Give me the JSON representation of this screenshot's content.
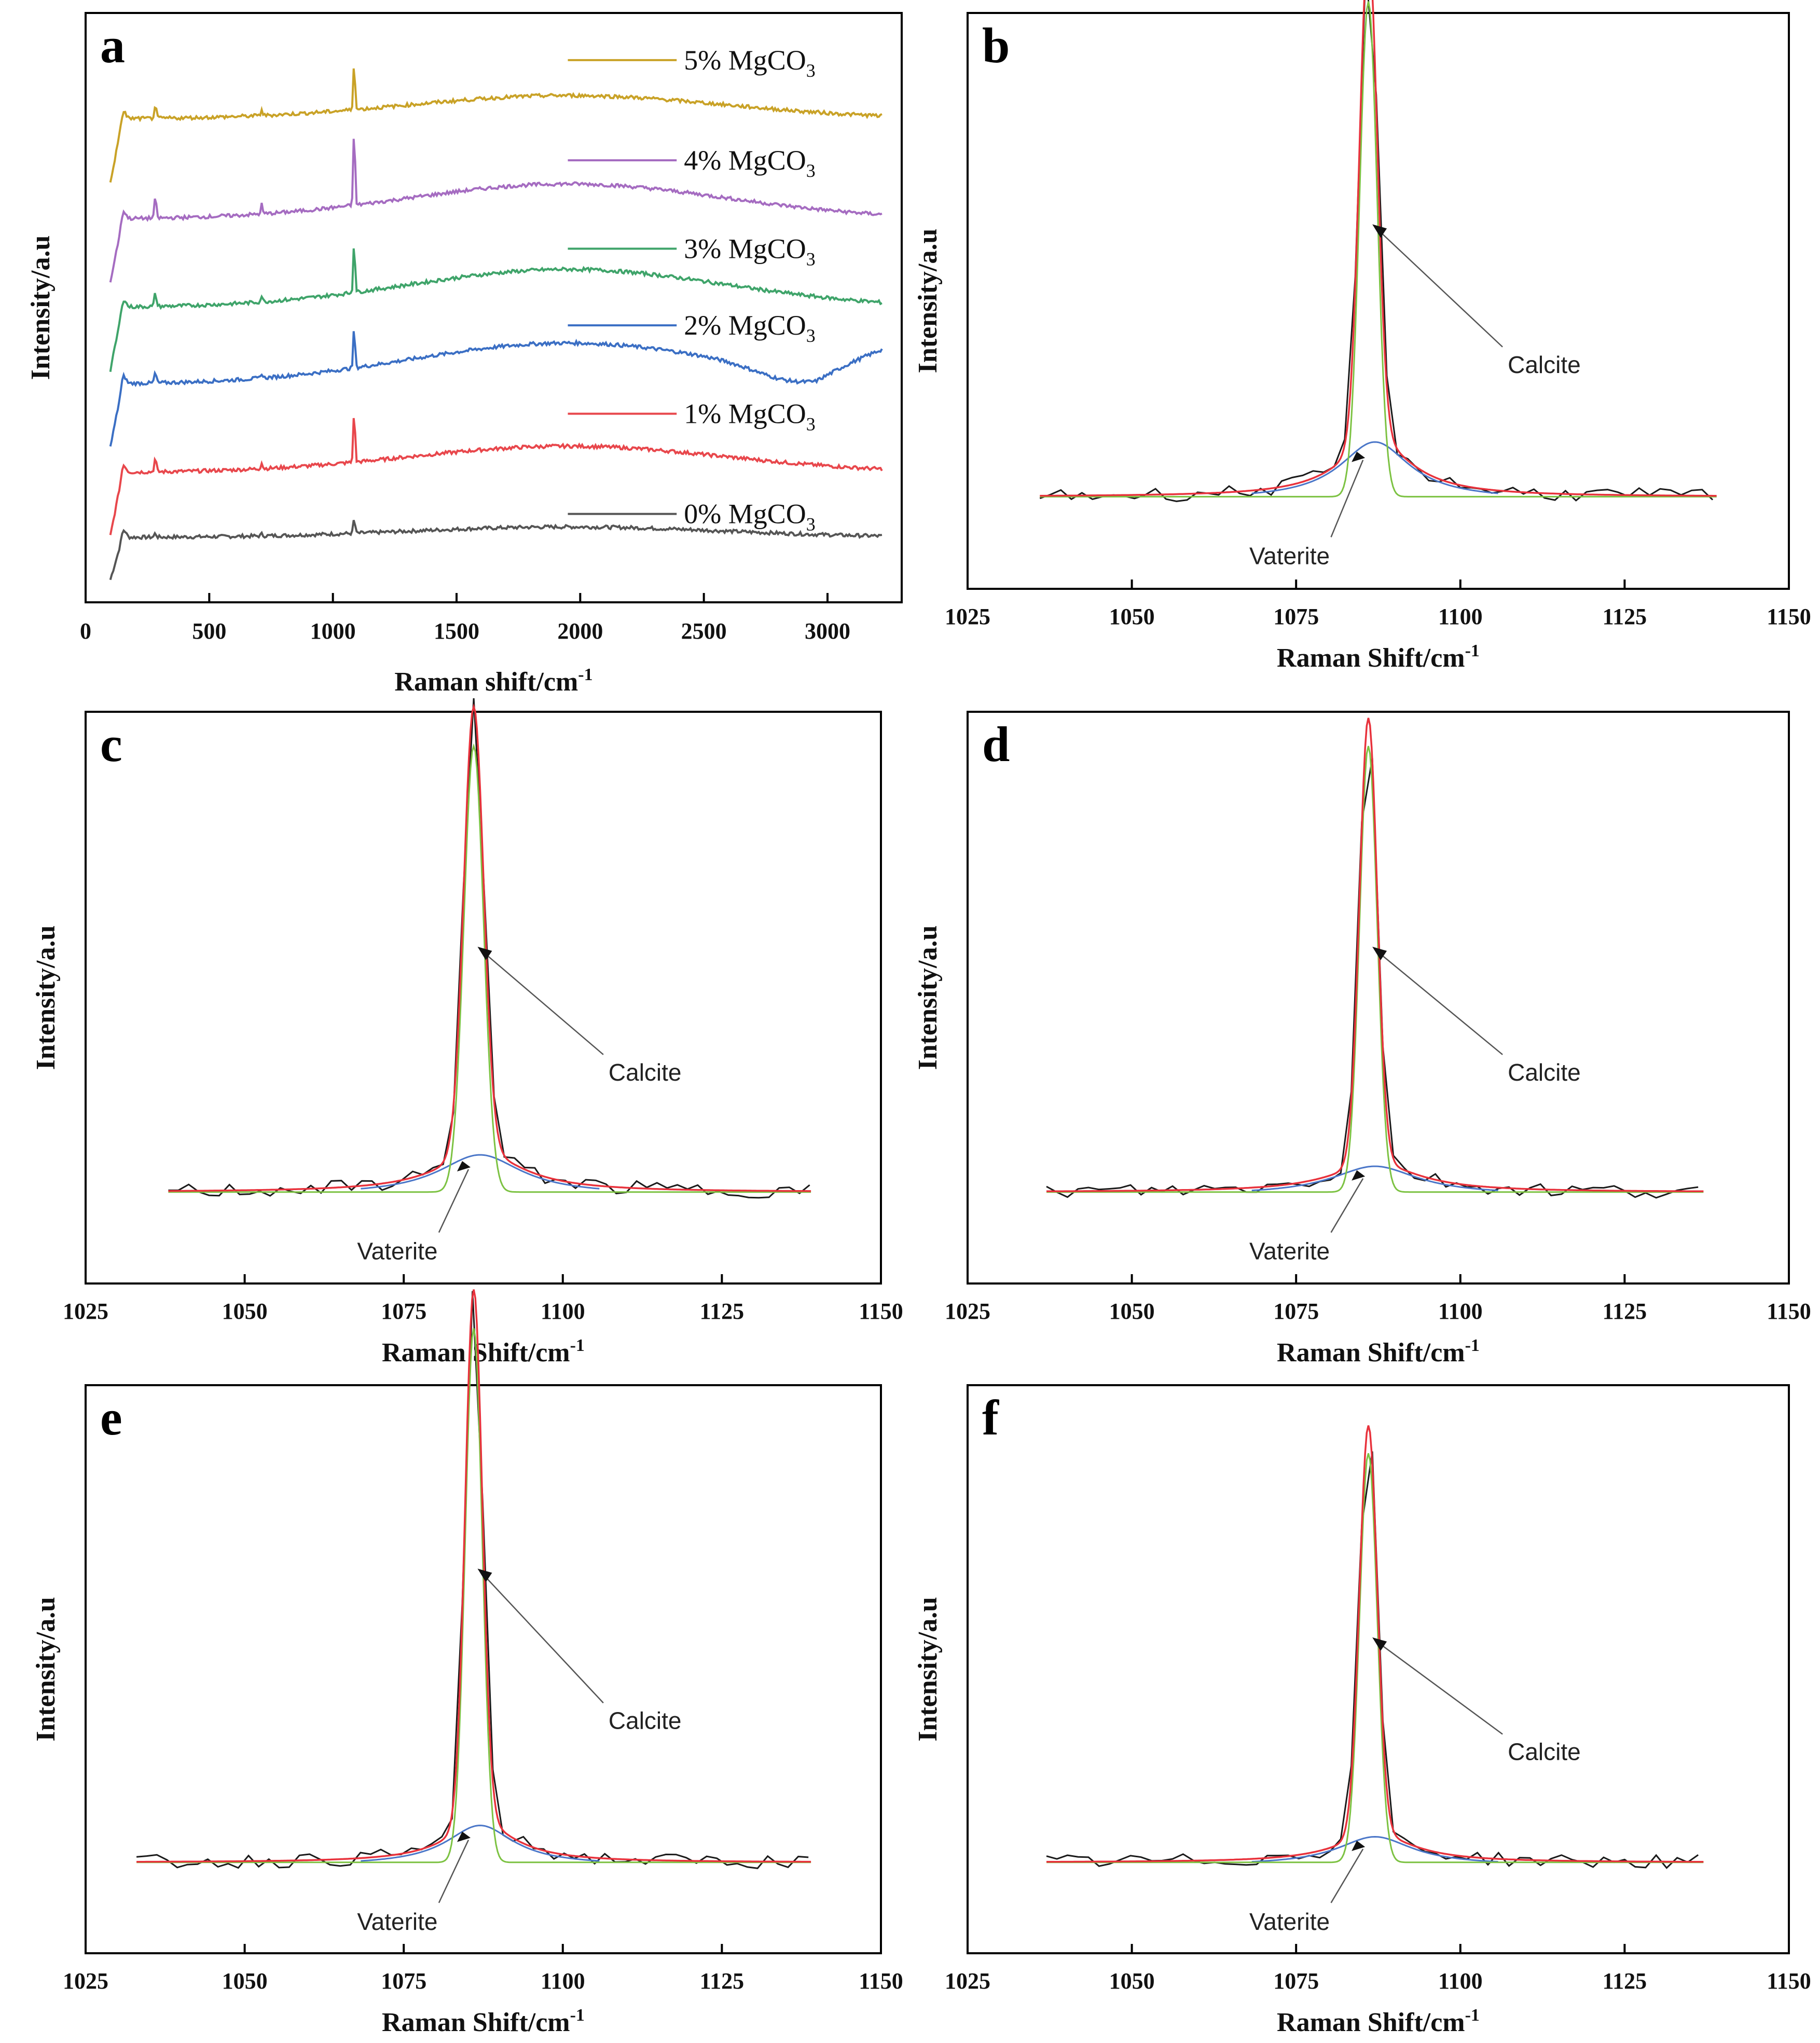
{
  "chart_data": [
    {
      "panel": "a",
      "type": "line",
      "xlabel": "Raman shift/cm",
      "xlabel_sup": "-1",
      "ylabel": "Intensity/a.u",
      "xlim": [
        0,
        3300
      ],
      "xticks": [
        0,
        500,
        1000,
        1500,
        2000,
        2500,
        3000
      ],
      "series": [
        {
          "name": "0% MgCO",
          "sub": "3",
          "color": "#555555",
          "offset": 0.11,
          "peak": 0.025,
          "hump": 0.018,
          "rise": 0.04
        },
        {
          "name": "1% MgCO",
          "sub": "3",
          "color": "#e8474c",
          "offset": 0.22,
          "peak": 0.09,
          "hump": 0.045,
          "rise": 0.06
        },
        {
          "name": "2% MgCO",
          "sub": "3",
          "color": "#3b6fc4",
          "offset": 0.37,
          "peak": 0.07,
          "hump": 0.07,
          "rise": 0.06
        },
        {
          "name": "3% MgCO",
          "sub": "3",
          "color": "#3fa46a",
          "offset": 0.5,
          "peak": 0.09,
          "hump": 0.065,
          "rise": 0.06
        },
        {
          "name": "4% MgCO",
          "sub": "3",
          "color": "#a56cc1",
          "offset": 0.65,
          "peak": 0.135,
          "hump": 0.06,
          "rise": 0.06
        },
        {
          "name": "5% MgCO",
          "sub": "3",
          "color": "#c9a227",
          "offset": 0.82,
          "peak": 0.085,
          "hump": 0.04,
          "rise": 0.06
        }
      ]
    },
    {
      "panel": "b",
      "type": "line",
      "xlabel": "Raman Shift/cm",
      "xlabel_sup": "-1",
      "ylabel": "Intensity/a.u",
      "xlim": [
        1025,
        1150
      ],
      "xticks": [
        1025,
        1050,
        1075,
        1100,
        1125,
        1150
      ],
      "data_range": [
        1036,
        1139
      ],
      "calcite": {
        "center": 1086,
        "height": 0.86,
        "width": 1.9
      },
      "vaterite": {
        "center": 1087,
        "height": 0.1,
        "width": 6.5
      },
      "annotations": [
        "Calcite",
        "Vaterite"
      ]
    },
    {
      "panel": "c",
      "type": "line",
      "xlabel": "Raman Shift/cm",
      "xlabel_sup": "-1",
      "ylabel": "Intensity/a.u",
      "xlim": [
        1025,
        1150
      ],
      "xticks": [
        1025,
        1050,
        1075,
        1100,
        1125,
        1150
      ],
      "data_range": [
        1038,
        1139
      ],
      "calcite": {
        "center": 1086,
        "height": 0.78,
        "width": 2.2
      },
      "vaterite": {
        "center": 1087,
        "height": 0.07,
        "width": 8
      },
      "annotations": [
        "Calcite",
        "Vaterite"
      ]
    },
    {
      "panel": "d",
      "type": "line",
      "xlabel": "Raman Shift/cm",
      "xlabel_sup": "-1",
      "ylabel": "Intensity/a.u",
      "xlim": [
        1025,
        1150
      ],
      "xticks": [
        1025,
        1050,
        1075,
        1100,
        1125,
        1150
      ],
      "data_range": [
        1037,
        1137
      ],
      "calcite": {
        "center": 1086,
        "height": 0.78,
        "width": 1.9
      },
      "vaterite": {
        "center": 1087,
        "height": 0.05,
        "width": 8
      },
      "annotations": [
        "Calcite",
        "Vaterite"
      ]
    },
    {
      "panel": "e",
      "type": "line",
      "xlabel": "Raman Shift/cm",
      "xlabel_sup": "-1",
      "ylabel": "Intensity/a.u",
      "xlim": [
        1025,
        1150
      ],
      "xticks": [
        1025,
        1050,
        1075,
        1100,
        1125,
        1150
      ],
      "data_range": [
        1033,
        1139
      ],
      "calcite": {
        "center": 1086,
        "height": 0.94,
        "width": 1.9
      },
      "vaterite": {
        "center": 1087,
        "height": 0.07,
        "width": 6.5
      },
      "annotations": [
        "Calcite",
        "Vaterite"
      ]
    },
    {
      "panel": "f",
      "type": "line",
      "xlabel": "Raman Shift/cm",
      "xlabel_sup": "-1",
      "ylabel": "Intensity/a.u",
      "xlim": [
        1025,
        1150
      ],
      "xticks": [
        1025,
        1050,
        1075,
        1100,
        1125,
        1150
      ],
      "data_range": [
        1037,
        1137
      ],
      "calcite": {
        "center": 1086,
        "height": 0.72,
        "width": 1.9
      },
      "vaterite": {
        "center": 1087,
        "height": 0.05,
        "width": 7
      },
      "annotations": [
        "Calcite",
        "Vaterite"
      ]
    }
  ],
  "fit_colors": {
    "raw": "#1a1a1a",
    "fit": "#e8323c",
    "calcite": "#7cc242",
    "vaterite": "#4a76c8"
  }
}
